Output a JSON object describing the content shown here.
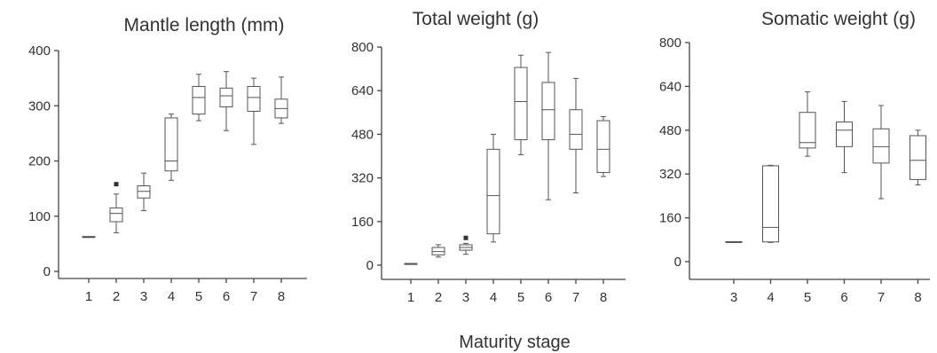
{
  "figure": {
    "x_label": "Maturity stage"
  },
  "chart_data": [
    {
      "type": "box",
      "title": "Mantle length (mm)",
      "ylim": [
        0,
        400
      ],
      "yticks": [
        0,
        100,
        200,
        300,
        400
      ],
      "categories": [
        "1",
        "2",
        "3",
        "4",
        "5",
        "6",
        "7",
        "8"
      ],
      "boxes": [
        {
          "stage": "1",
          "min": 62,
          "q1": 62,
          "median": 63,
          "q3": 63,
          "max": 63
        },
        {
          "stage": "2",
          "min": 70,
          "q1": 90,
          "median": 105,
          "q3": 115,
          "max": 140,
          "outliers": [
            158
          ]
        },
        {
          "stage": "3",
          "min": 110,
          "q1": 133,
          "median": 145,
          "q3": 155,
          "max": 178
        },
        {
          "stage": "4",
          "min": 165,
          "q1": 182,
          "median": 200,
          "q3": 278,
          "max": 285
        },
        {
          "stage": "5",
          "min": 273,
          "q1": 285,
          "median": 315,
          "q3": 335,
          "max": 357
        },
        {
          "stage": "6",
          "min": 255,
          "q1": 298,
          "median": 318,
          "q3": 332,
          "max": 362
        },
        {
          "stage": "7",
          "min": 230,
          "q1": 290,
          "median": 315,
          "q3": 335,
          "max": 350
        },
        {
          "stage": "8",
          "min": 268,
          "q1": 278,
          "median": 295,
          "q3": 312,
          "max": 352
        }
      ]
    },
    {
      "type": "box",
      "title": "Total weight (g)",
      "ylim": [
        0,
        800
      ],
      "yticks": [
        0,
        160,
        320,
        480,
        640,
        800
      ],
      "categories": [
        "1",
        "2",
        "3",
        "4",
        "5",
        "6",
        "7",
        "8"
      ],
      "boxes": [
        {
          "stage": "1",
          "min": 5,
          "q1": 5,
          "median": 6,
          "q3": 6,
          "max": 6
        },
        {
          "stage": "2",
          "min": 30,
          "q1": 38,
          "median": 50,
          "q3": 65,
          "max": 75
        },
        {
          "stage": "3",
          "min": 40,
          "q1": 55,
          "median": 65,
          "q3": 75,
          "max": 80,
          "outliers": [
            100
          ]
        },
        {
          "stage": "4",
          "min": 85,
          "q1": 115,
          "median": 255,
          "q3": 425,
          "max": 480
        },
        {
          "stage": "5",
          "min": 405,
          "q1": 460,
          "median": 600,
          "q3": 725,
          "max": 770
        },
        {
          "stage": "6",
          "min": 240,
          "q1": 460,
          "median": 570,
          "q3": 670,
          "max": 780
        },
        {
          "stage": "7",
          "min": 265,
          "q1": 425,
          "median": 480,
          "q3": 570,
          "max": 685
        },
        {
          "stage": "8",
          "min": 325,
          "q1": 340,
          "median": 425,
          "q3": 530,
          "max": 545
        }
      ]
    },
    {
      "type": "box",
      "title": "Somatic weight (g)",
      "ylim": [
        0,
        800
      ],
      "yticks": [
        0,
        160,
        320,
        480,
        640,
        800
      ],
      "categories": [
        "3",
        "4",
        "5",
        "6",
        "7",
        "8"
      ],
      "boxes": [
        {
          "stage": "3",
          "min": 72,
          "q1": 72,
          "median": 73,
          "q3": 73,
          "max": 73
        },
        {
          "stage": "4",
          "min": 70,
          "q1": 72,
          "median": 125,
          "q3": 350,
          "max": 352
        },
        {
          "stage": "5",
          "min": 385,
          "q1": 415,
          "median": 435,
          "q3": 545,
          "max": 620
        },
        {
          "stage": "6",
          "min": 325,
          "q1": 420,
          "median": 480,
          "q3": 510,
          "max": 585
        },
        {
          "stage": "7",
          "min": 230,
          "q1": 360,
          "median": 420,
          "q3": 485,
          "max": 570
        },
        {
          "stage": "8",
          "min": 280,
          "q1": 300,
          "median": 370,
          "q3": 460,
          "max": 480
        }
      ]
    }
  ]
}
